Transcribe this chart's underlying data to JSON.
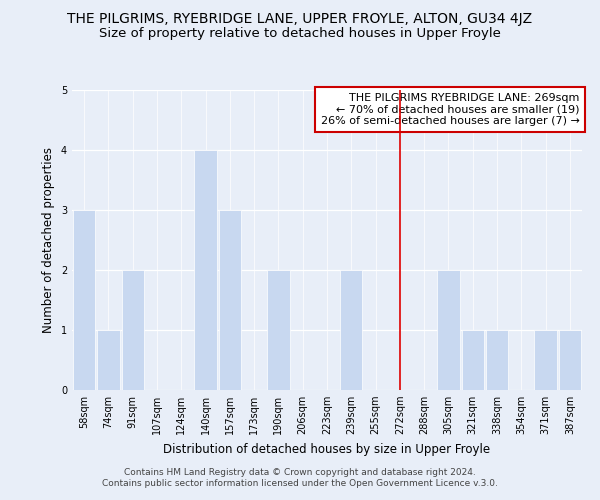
{
  "title": "THE PILGRIMS, RYEBRIDGE LANE, UPPER FROYLE, ALTON, GU34 4JZ",
  "subtitle": "Size of property relative to detached houses in Upper Froyle",
  "xlabel": "Distribution of detached houses by size in Upper Froyle",
  "ylabel": "Number of detached properties",
  "bin_labels": [
    "58sqm",
    "74sqm",
    "91sqm",
    "107sqm",
    "124sqm",
    "140sqm",
    "157sqm",
    "173sqm",
    "190sqm",
    "206sqm",
    "223sqm",
    "239sqm",
    "255sqm",
    "272sqm",
    "288sqm",
    "305sqm",
    "321sqm",
    "338sqm",
    "354sqm",
    "371sqm",
    "387sqm"
  ],
  "bar_heights": [
    3,
    1,
    2,
    0,
    0,
    4,
    3,
    0,
    2,
    0,
    0,
    2,
    0,
    0,
    0,
    2,
    1,
    1,
    0,
    1,
    1
  ],
  "bar_color": "#c8d8f0",
  "bar_edge_color": "#c8d8f0",
  "reference_line_x_label": "272sqm",
  "reference_line_color": "#dd0000",
  "ylim": [
    0,
    5
  ],
  "yticks": [
    0,
    1,
    2,
    3,
    4,
    5
  ],
  "annotation_title": "THE PILGRIMS RYEBRIDGE LANE: 269sqm",
  "annotation_line1": "← 70% of detached houses are smaller (19)",
  "annotation_line2": "26% of semi-detached houses are larger (7) →",
  "annotation_box_color": "#ffffff",
  "annotation_box_edge_color": "#cc0000",
  "footer1": "Contains HM Land Registry data © Crown copyright and database right 2024.",
  "footer2": "Contains public sector information licensed under the Open Government Licence v.3.0.",
  "background_color": "#e8eef8",
  "plot_background_color": "#e8eef8",
  "title_fontsize": 10,
  "subtitle_fontsize": 9.5,
  "axis_label_fontsize": 8.5,
  "tick_fontsize": 7,
  "footer_fontsize": 6.5,
  "annotation_fontsize": 8
}
